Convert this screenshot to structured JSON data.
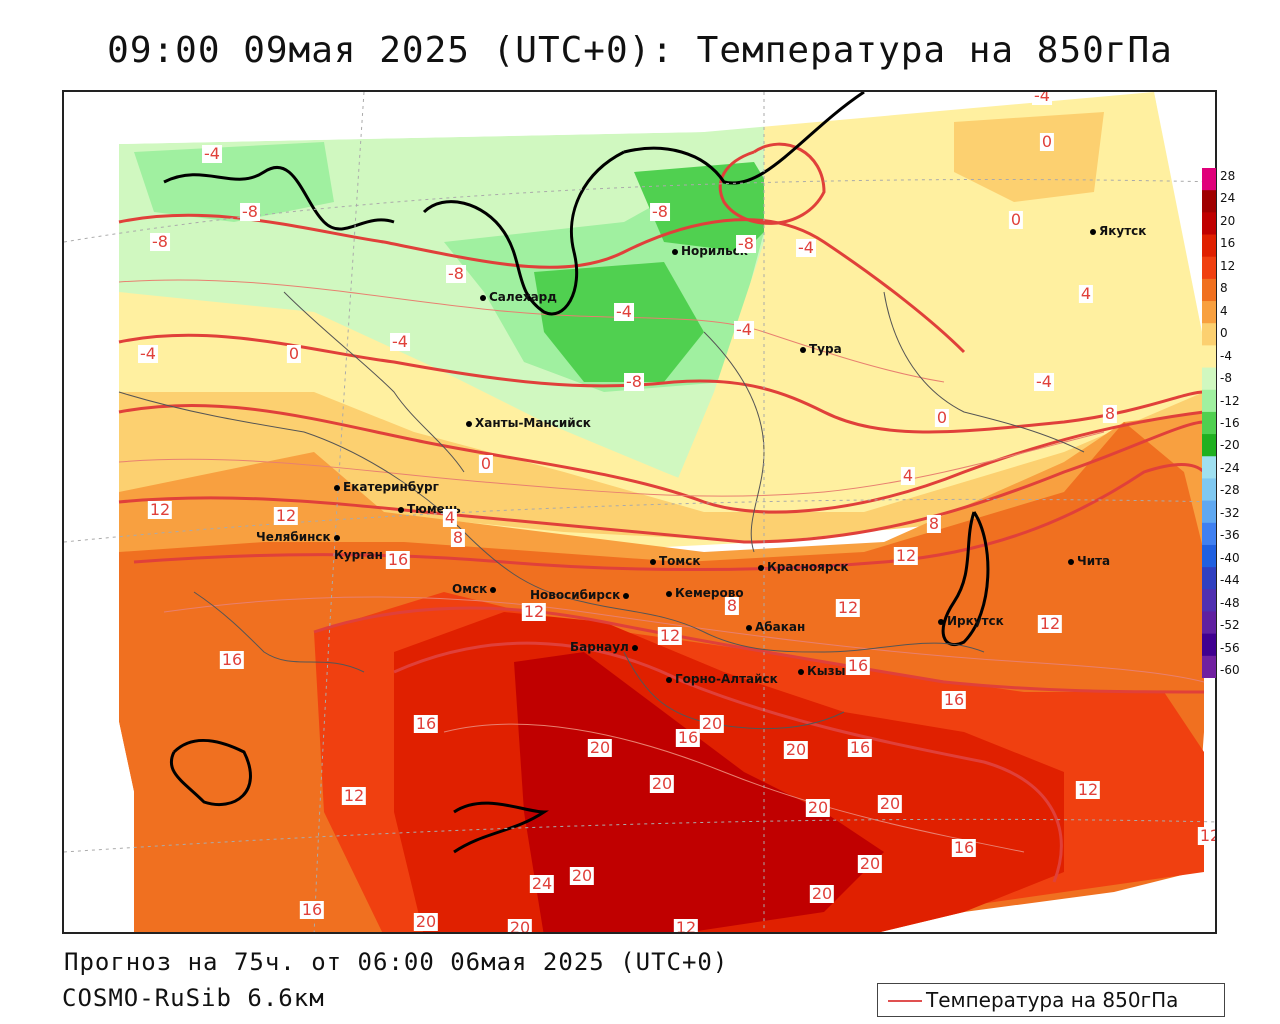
{
  "title": "09:00 09мая 2025 (UTC+0): Температура на 850гПа",
  "forecast_line": "Прогноз на 75ч. от 06:00 06мая 2025 (UTC+0)",
  "model_line": "COSMO-RuSib 6.6км",
  "legend": {
    "series_label": "Температура на 850гПа",
    "line_color": "#e05050"
  },
  "colorbar": {
    "ticks": [
      "28",
      "24",
      "20",
      "16",
      "12",
      "8",
      "4",
      "0",
      "-4",
      "-8",
      "-12",
      "-16",
      "-20",
      "-24",
      "-28",
      "-32",
      "-36",
      "-40",
      "-44",
      "-48",
      "-52",
      "-56",
      "-60"
    ],
    "colors": [
      "#e0007a",
      "#a00000",
      "#c00000",
      "#e02000",
      "#f04010",
      "#f07020",
      "#f8a040",
      "#fcd070",
      "#fff0a0",
      "#d0f8c0",
      "#a0f0a0",
      "#50d050",
      "#20b020",
      "#a0e0f0",
      "#80c8f0",
      "#60a8f0",
      "#4080f0",
      "#2060e0",
      "#3040c0",
      "#5030b0",
      "#6020a0",
      "#400090",
      "#7020a0"
    ]
  },
  "cities": [
    {
      "name": "Якутск"
    },
    {
      "name": "Норильск"
    },
    {
      "name": "Салехард"
    },
    {
      "name": "Тура"
    },
    {
      "name": "Ханты-Мансийск"
    },
    {
      "name": "Екатеринбург"
    },
    {
      "name": "Тюмень"
    },
    {
      "name": "Челябинск"
    },
    {
      "name": "Курган"
    },
    {
      "name": "Томск"
    },
    {
      "name": "Красноярск"
    },
    {
      "name": "Омск"
    },
    {
      "name": "Новосибирск"
    },
    {
      "name": "Кемерово"
    },
    {
      "name": "Абакан"
    },
    {
      "name": "Иркутск"
    },
    {
      "name": "Чита"
    },
    {
      "name": "Барнаул"
    },
    {
      "name": "Горно-Алтайск"
    },
    {
      "name": "Кызыл"
    }
  ],
  "contour_labels": [
    "-4",
    "-8",
    "-8",
    "-4",
    "-8",
    "-8",
    "-8",
    "-4",
    "-4",
    "-4",
    "-4",
    "-8",
    "-4",
    "0",
    "0",
    "-4",
    "0",
    "4",
    "0",
    "4",
    "8",
    "4",
    "0",
    "8",
    "8",
    "12",
    "12",
    "12",
    "16",
    "12",
    "16",
    "12",
    "12",
    "12",
    "8",
    "16",
    "16",
    "16",
    "20",
    "20",
    "20",
    "20",
    "16",
    "20",
    "20",
    "12",
    "16",
    "16",
    "12",
    "24",
    "20",
    "20",
    "20",
    "20",
    "16",
    "20",
    "12",
    "12"
  ]
}
